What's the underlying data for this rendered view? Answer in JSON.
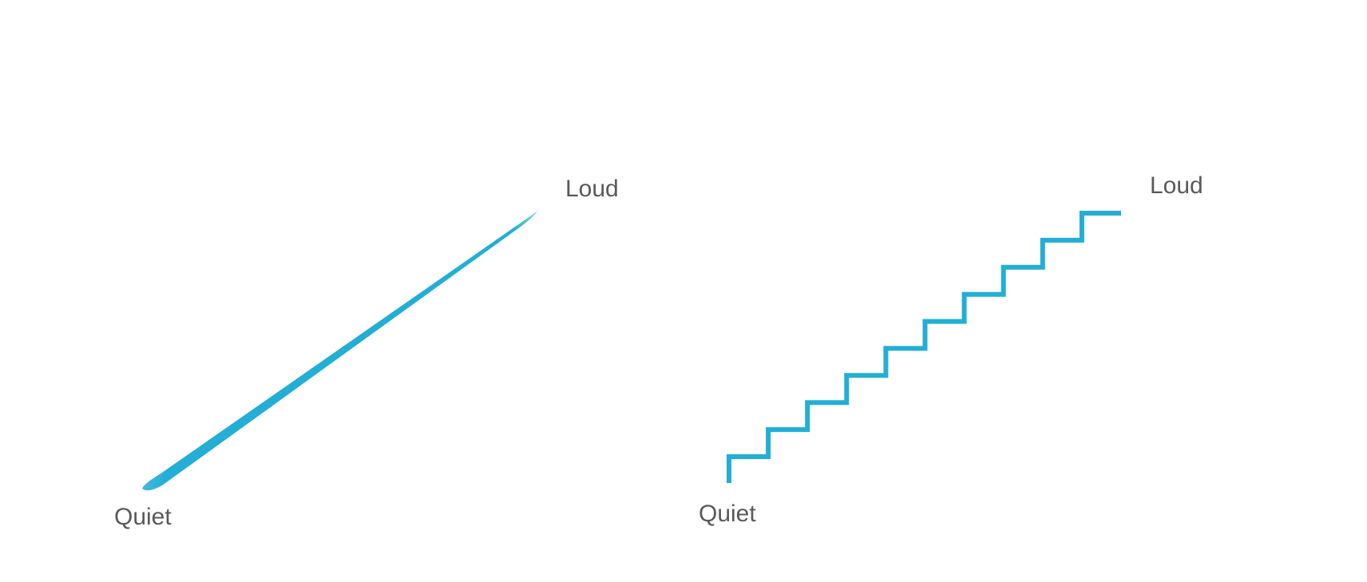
{
  "accent_color": "#23aed6",
  "continuous": {
    "start_label": "Quiet",
    "end_label": "Loud"
  },
  "stepped": {
    "start_label": "Quiet",
    "end_label": "Loud",
    "step_count": 10
  }
}
